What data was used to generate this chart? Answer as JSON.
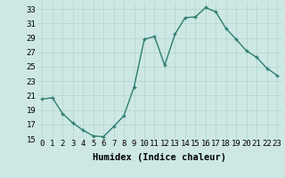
{
  "x": [
    0,
    1,
    2,
    3,
    4,
    5,
    6,
    7,
    8,
    9,
    10,
    11,
    12,
    13,
    14,
    15,
    16,
    17,
    18,
    19,
    20,
    21,
    22,
    23
  ],
  "y": [
    20.5,
    20.7,
    18.5,
    17.2,
    16.2,
    15.4,
    15.3,
    16.7,
    18.2,
    22.2,
    28.8,
    29.2,
    25.2,
    29.5,
    31.8,
    31.9,
    33.2,
    32.6,
    30.3,
    28.8,
    27.2,
    26.3,
    24.8,
    23.8
  ],
  "line_color": "#2e7d6e",
  "marker": "+",
  "marker_size": 3.5,
  "marker_edge_width": 1.0,
  "bg_color": "#cde8e4",
  "grid_color": "#b0d4ce",
  "xlabel": "Humidex (Indice chaleur)",
  "xlim": [
    -0.5,
    23.5
  ],
  "ylim": [
    15,
    34
  ],
  "yticks": [
    15,
    17,
    19,
    21,
    23,
    25,
    27,
    29,
    31,
    33
  ],
  "xticks": [
    0,
    1,
    2,
    3,
    4,
    5,
    6,
    7,
    8,
    9,
    10,
    11,
    12,
    13,
    14,
    15,
    16,
    17,
    18,
    19,
    20,
    21,
    22,
    23
  ],
  "xtick_labels": [
    "0",
    "1",
    "2",
    "3",
    "4",
    "5",
    "6",
    "7",
    "8",
    "9",
    "10",
    "11",
    "12",
    "13",
    "14",
    "15",
    "16",
    "17",
    "18",
    "19",
    "20",
    "21",
    "22",
    "23"
  ],
  "xlabel_fontsize": 7.5,
  "tick_fontsize": 6.5,
  "line_width": 1.0
}
